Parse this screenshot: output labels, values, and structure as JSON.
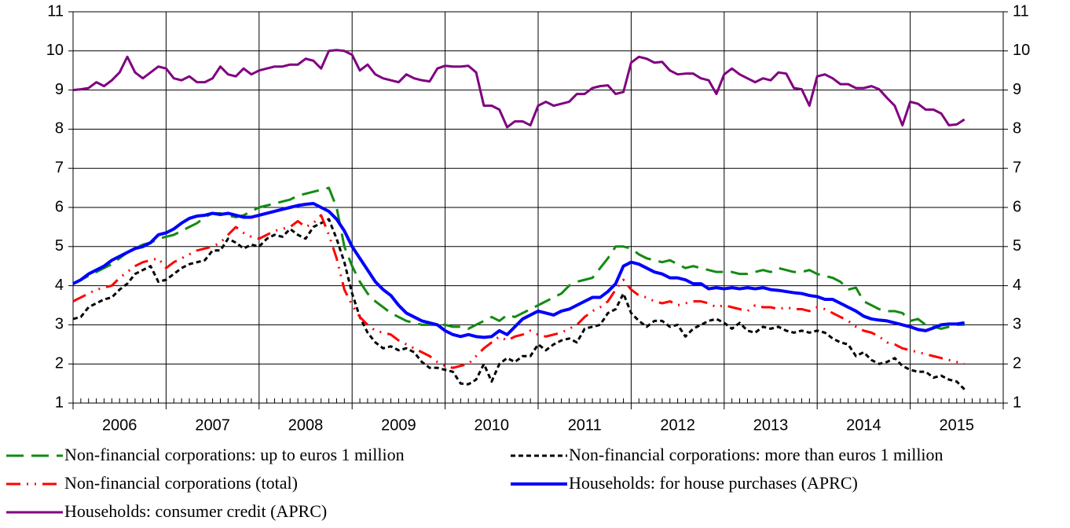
{
  "chart_data": {
    "type": "line",
    "categories": [
      null,
      null,
      null,
      null,
      null,
      null,
      "2006",
      null,
      null,
      null,
      null,
      null,
      null,
      null,
      null,
      null,
      null,
      null,
      "2007",
      null,
      null,
      null,
      null,
      null,
      null,
      null,
      null,
      null,
      null,
      null,
      "2008",
      null,
      null,
      null,
      null,
      null,
      null,
      null,
      null,
      null,
      null,
      null,
      "2009",
      null,
      null,
      null,
      null,
      null,
      null,
      null,
      null,
      null,
      null,
      null,
      "2010",
      null,
      null,
      null,
      null,
      null,
      null,
      null,
      null,
      null,
      null,
      null,
      "2011",
      null,
      null,
      null,
      null,
      null,
      null,
      null,
      null,
      null,
      null,
      null,
      "2012",
      null,
      null,
      null,
      null,
      null,
      null,
      null,
      null,
      null,
      null,
      null,
      "2013",
      null,
      null,
      null,
      null,
      null,
      null,
      null,
      null,
      null,
      null,
      null,
      "2014",
      null,
      null,
      null,
      null,
      null,
      null,
      null,
      null,
      null,
      null,
      null,
      "2015",
      null,
      null,
      null,
      null,
      null
    ],
    "ylim": [
      1,
      11
    ],
    "yticks": [
      1,
      2,
      3,
      4,
      5,
      6,
      7,
      8,
      9,
      10,
      11
    ],
    "y2lim": [
      1,
      11
    ],
    "y2ticks": [
      1,
      2,
      3,
      4,
      5,
      6,
      7,
      8,
      9,
      10,
      11
    ],
    "grid": true,
    "series": [
      {
        "name": "Non-financial corporations: up to euros 1 million",
        "color": "#138a13",
        "style": "long-dash",
        "values": [
          4.05,
          4.15,
          4.25,
          4.35,
          4.45,
          4.55,
          4.7,
          4.85,
          4.95,
          5.05,
          5.1,
          5.2,
          5.25,
          5.3,
          5.4,
          5.5,
          5.6,
          5.75,
          5.85,
          5.85,
          5.8,
          5.75,
          5.8,
          5.9,
          6.0,
          6.05,
          6.1,
          6.15,
          6.2,
          6.3,
          6.35,
          6.4,
          6.45,
          6.5,
          6.0,
          5.0,
          4.5,
          4.1,
          3.8,
          3.6,
          3.45,
          3.3,
          3.2,
          3.1,
          3.05,
          3.0,
          3.0,
          3.0,
          3.0,
          2.95,
          2.95,
          2.9,
          3.0,
          3.1,
          3.2,
          3.1,
          3.25,
          3.2,
          3.3,
          3.4,
          3.5,
          3.6,
          3.7,
          3.8,
          4.0,
          4.1,
          4.15,
          4.2,
          4.45,
          4.7,
          5.0,
          5.0,
          4.95,
          4.8,
          4.7,
          4.65,
          4.6,
          4.65,
          4.55,
          4.45,
          4.5,
          4.45,
          4.4,
          4.35,
          4.35,
          4.35,
          4.3,
          4.3,
          4.35,
          4.4,
          4.35,
          4.45,
          4.4,
          4.35,
          4.35,
          4.4,
          4.3,
          4.25,
          4.2,
          4.1,
          3.9,
          3.95,
          3.6,
          3.5,
          3.4,
          3.35,
          3.35,
          3.3,
          3.1,
          3.15,
          3.0,
          2.95,
          2.9,
          2.95,
          3.0,
          3.0,
          null,
          null,
          null,
          null
        ]
      },
      {
        "name": "Non-financial corporations: more than euros 1 million",
        "color": "#000000",
        "style": "short-dash",
        "values": [
          3.15,
          3.2,
          3.45,
          3.55,
          3.65,
          3.7,
          3.9,
          4.05,
          4.3,
          4.4,
          4.5,
          4.1,
          4.15,
          4.3,
          4.45,
          4.55,
          4.6,
          4.65,
          4.9,
          4.9,
          5.2,
          5.1,
          4.95,
          5.05,
          5.0,
          5.2,
          5.3,
          5.25,
          5.45,
          5.3,
          5.2,
          5.5,
          5.6,
          5.7,
          5.2,
          4.6,
          3.8,
          3.2,
          2.8,
          2.55,
          2.4,
          2.45,
          2.35,
          2.4,
          2.3,
          2.05,
          1.9,
          1.9,
          1.85,
          1.8,
          1.5,
          1.48,
          1.6,
          2.0,
          1.55,
          2.0,
          2.15,
          2.05,
          2.2,
          2.2,
          2.5,
          2.35,
          2.5,
          2.6,
          2.65,
          2.55,
          2.9,
          2.95,
          3.0,
          3.3,
          3.4,
          3.8,
          3.3,
          3.1,
          2.95,
          3.1,
          3.1,
          2.95,
          3.0,
          2.7,
          2.9,
          3.0,
          3.1,
          3.15,
          3.05,
          2.9,
          3.05,
          2.85,
          2.8,
          2.95,
          2.9,
          2.95,
          2.85,
          2.8,
          2.85,
          2.8,
          2.85,
          2.8,
          2.65,
          2.55,
          2.5,
          2.2,
          2.3,
          2.1,
          2.0,
          2.05,
          2.15,
          1.95,
          1.85,
          1.8,
          1.8,
          1.65,
          1.7,
          1.6,
          1.55,
          1.35,
          null,
          null,
          null,
          null
        ]
      },
      {
        "name": "Non-financial corporations (total)",
        "color": "#ff0000",
        "style": "dash-dot-dot",
        "values": [
          3.6,
          3.7,
          3.8,
          3.9,
          3.95,
          4.0,
          4.2,
          4.35,
          4.5,
          4.6,
          4.65,
          4.7,
          4.45,
          4.6,
          4.7,
          4.8,
          4.9,
          4.95,
          5.0,
          5.1,
          5.3,
          5.5,
          5.35,
          5.25,
          5.2,
          5.3,
          5.4,
          5.45,
          5.5,
          5.65,
          5.5,
          5.6,
          5.8,
          5.3,
          4.7,
          3.9,
          3.5,
          3.2,
          3.0,
          2.85,
          2.8,
          2.75,
          2.6,
          2.5,
          2.4,
          2.3,
          2.2,
          2.05,
          1.95,
          1.9,
          1.95,
          2.0,
          2.2,
          2.4,
          2.55,
          2.7,
          2.6,
          2.7,
          2.75,
          2.85,
          2.75,
          2.7,
          2.75,
          2.8,
          2.9,
          3.0,
          3.2,
          3.35,
          3.45,
          3.6,
          3.9,
          4.15,
          3.9,
          3.75,
          3.7,
          3.6,
          3.55,
          3.6,
          3.5,
          3.55,
          3.6,
          3.6,
          3.55,
          3.45,
          3.5,
          3.45,
          3.4,
          3.35,
          3.5,
          3.45,
          3.45,
          3.4,
          3.45,
          3.4,
          3.4,
          3.35,
          3.45,
          3.4,
          3.3,
          3.2,
          3.1,
          2.95,
          2.85,
          2.8,
          2.7,
          2.55,
          2.5,
          2.4,
          2.35,
          2.3,
          2.25,
          2.2,
          2.15,
          2.1,
          2.05,
          2.0,
          null,
          null,
          null,
          null
        ]
      },
      {
        "name": "Households: for house purchases (APRC)",
        "color": "#0000ff",
        "style": "solid-thick",
        "values": [
          4.05,
          4.15,
          4.3,
          4.4,
          4.5,
          4.65,
          4.75,
          4.85,
          4.95,
          5.0,
          5.1,
          5.3,
          5.35,
          5.45,
          5.6,
          5.72,
          5.78,
          5.8,
          5.85,
          5.82,
          5.85,
          5.8,
          5.75,
          5.75,
          5.8,
          5.85,
          5.9,
          5.95,
          6.0,
          6.05,
          6.08,
          6.1,
          6.0,
          5.9,
          5.7,
          5.4,
          5.0,
          4.7,
          4.4,
          4.1,
          3.9,
          3.75,
          3.5,
          3.3,
          3.2,
          3.1,
          3.05,
          3.0,
          2.85,
          2.75,
          2.7,
          2.75,
          2.7,
          2.68,
          2.7,
          2.85,
          2.75,
          2.95,
          3.15,
          3.25,
          3.35,
          3.3,
          3.25,
          3.35,
          3.4,
          3.5,
          3.6,
          3.7,
          3.7,
          3.85,
          4.05,
          4.5,
          4.6,
          4.55,
          4.45,
          4.35,
          4.3,
          4.2,
          4.2,
          4.15,
          4.05,
          4.05,
          3.92,
          3.95,
          3.92,
          3.95,
          3.92,
          3.95,
          3.92,
          3.95,
          3.9,
          3.88,
          3.85,
          3.82,
          3.8,
          3.75,
          3.72,
          3.65,
          3.65,
          3.55,
          3.45,
          3.35,
          3.22,
          3.15,
          3.12,
          3.1,
          3.05,
          3.0,
          2.95,
          2.88,
          2.85,
          2.92,
          3.0,
          3.02,
          3.02,
          3.05,
          null,
          null,
          null,
          null
        ]
      },
      {
        "name": "Households: consumer credit (APRC)",
        "color": "#800080",
        "style": "solid",
        "values": [
          9.0,
          9.02,
          9.05,
          9.2,
          9.1,
          9.25,
          9.45,
          9.85,
          9.45,
          9.3,
          9.45,
          9.6,
          9.55,
          9.3,
          9.25,
          9.35,
          9.2,
          9.2,
          9.3,
          9.6,
          9.4,
          9.35,
          9.55,
          9.4,
          9.5,
          9.55,
          9.6,
          9.6,
          9.65,
          9.65,
          9.8,
          9.75,
          9.55,
          10.0,
          10.02,
          10.0,
          9.9,
          9.5,
          9.65,
          9.4,
          9.3,
          9.25,
          9.2,
          9.4,
          9.3,
          9.25,
          9.22,
          9.55,
          9.62,
          9.6,
          9.6,
          9.62,
          9.45,
          8.6,
          8.6,
          8.5,
          8.05,
          8.2,
          8.2,
          8.1,
          8.6,
          8.7,
          8.6,
          8.65,
          8.7,
          8.9,
          8.9,
          9.05,
          9.1,
          9.12,
          8.9,
          8.95,
          9.7,
          9.85,
          9.8,
          9.7,
          9.72,
          9.5,
          9.4,
          9.42,
          9.42,
          9.3,
          9.25,
          8.9,
          9.4,
          9.55,
          9.4,
          9.3,
          9.2,
          9.3,
          9.25,
          9.45,
          9.42,
          9.05,
          9.02,
          8.6,
          9.35,
          9.4,
          9.3,
          9.15,
          9.15,
          9.05,
          9.05,
          9.1,
          9.02,
          8.8,
          8.6,
          8.1,
          8.7,
          8.65,
          8.5,
          8.5,
          8.4,
          8.1,
          8.12,
          8.25,
          null,
          null,
          null,
          null
        ]
      }
    ]
  }
}
